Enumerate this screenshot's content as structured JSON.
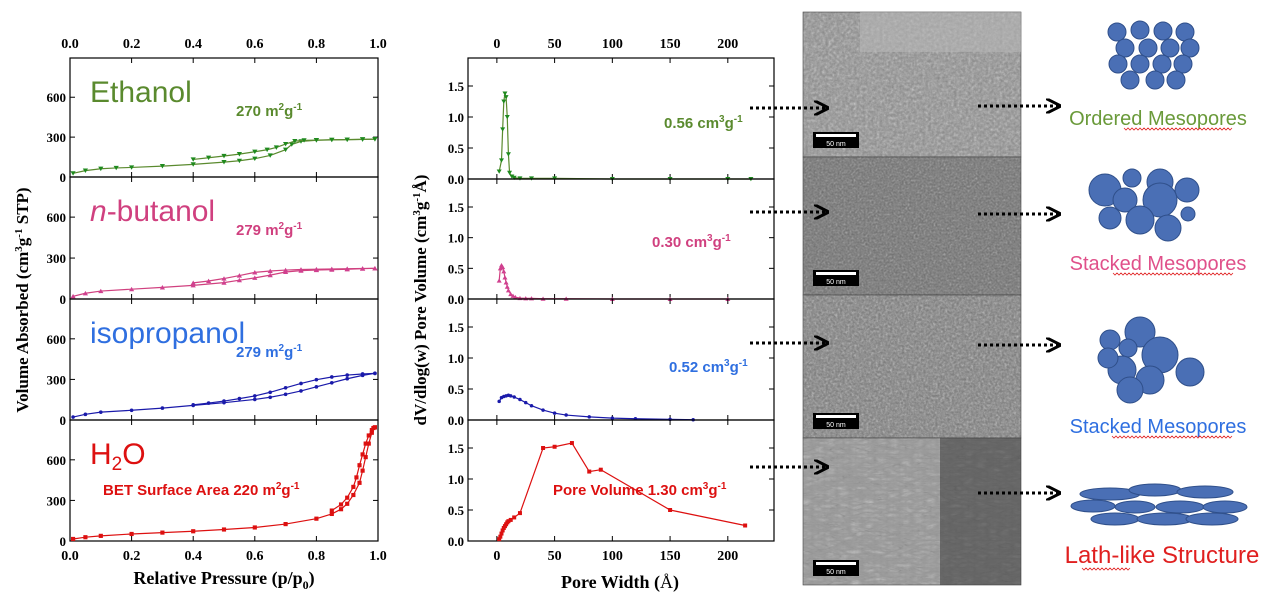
{
  "chart_data": [
    {
      "type": "line",
      "xlabel": "Relative Pressure (p/p0)",
      "xlabel_main": "Relative Pressure (p/p",
      "xlabel_sub": "0",
      "xlabel_tail": ")",
      "ylabel": "Volume Absorbed (cm3g-1 STP)",
      "ylabel_main": "Volume Absorbed (cm",
      "ylabel_sup": "3",
      "ylabel_mid": "g",
      "ylabel_sup2": "-1",
      "ylabel_tail": " STP)",
      "xlim": [
        0.0,
        1.0
      ],
      "x_ticks": [
        "0.0",
        "0.2",
        "0.4",
        "0.6",
        "0.8",
        "1.0"
      ],
      "x_tick_values": [
        0.0,
        0.2,
        0.4,
        0.6,
        0.8,
        1.0
      ],
      "ylim": [
        0,
        850
      ],
      "y_ticks": [
        "0",
        "300",
        "600"
      ],
      "y_tick_values": [
        0,
        300,
        600
      ],
      "panels": [
        {
          "name": "Ethanol",
          "color": "#5a8a2e",
          "marker_color": "#1e8a1e",
          "marker": "triangle-down",
          "annotation": "270 m2g-1",
          "annotation_main": "270 m",
          "annotation_sup": "2",
          "annotation_mid": "g",
          "annotation_sup2": "-1",
          "adsorption": {
            "x": [
              0.01,
              0.05,
              0.1,
              0.15,
              0.2,
              0.3,
              0.4,
              0.5,
              0.55,
              0.6,
              0.65,
              0.7,
              0.72,
              0.75,
              0.8,
              0.85,
              0.9,
              0.95,
              0.99
            ],
            "y": [
              28,
              48,
              62,
              68,
              72,
              82,
              95,
              112,
              122,
              138,
              162,
              205,
              245,
              268,
              276,
              279,
              281,
              283,
              285
            ]
          },
          "desorption": {
            "x": [
              0.99,
              0.95,
              0.9,
              0.85,
              0.8,
              0.76,
              0.73,
              0.7,
              0.67,
              0.64,
              0.6,
              0.55,
              0.5,
              0.45,
              0.4
            ],
            "y": [
              285,
              283,
              281,
              280,
              278,
              276,
              270,
              248,
              222,
              205,
              190,
              172,
              158,
              145,
              132
            ]
          }
        },
        {
          "name": "n-butanol",
          "name_italic": "n",
          "name_rest": "-butanol",
          "color": "#d0407f",
          "marker_color": "#d0408f",
          "marker": "triangle-up",
          "annotation": "279 m2g-1",
          "annotation_main": "279 m",
          "annotation_sup": "2",
          "annotation_mid": "g",
          "annotation_sup2": "-1",
          "adsorption": {
            "x": [
              0.01,
              0.05,
              0.1,
              0.2,
              0.3,
              0.4,
              0.5,
              0.55,
              0.6,
              0.65,
              0.7,
              0.75,
              0.8,
              0.85,
              0.9,
              0.95,
              0.99
            ],
            "y": [
              20,
              42,
              58,
              72,
              85,
              100,
              120,
              138,
              155,
              175,
              198,
              208,
              212,
              215,
              218,
              222,
              225
            ]
          },
          "desorption": {
            "x": [
              0.99,
              0.95,
              0.9,
              0.85,
              0.8,
              0.75,
              0.7,
              0.65,
              0.6,
              0.55,
              0.5,
              0.45,
              0.4
            ],
            "y": [
              225,
              224,
              222,
              220,
              218,
              216,
              212,
              205,
              195,
              172,
              150,
              132,
              118
            ]
          }
        },
        {
          "name": "isopropanol",
          "color": "#1a1aaa",
          "marker_color": "#1a1aaa",
          "marker": "dot",
          "label_color": "#2f6fe0",
          "annotation": "279 m2g-1",
          "annotation_main": "279 m",
          "annotation_sup": "2",
          "annotation_mid": "g",
          "annotation_sup2": "-1",
          "adsorption": {
            "x": [
              0.01,
              0.05,
              0.1,
              0.2,
              0.3,
              0.4,
              0.5,
              0.6,
              0.65,
              0.7,
              0.75,
              0.8,
              0.85,
              0.9,
              0.95,
              0.99
            ],
            "y": [
              22,
              42,
              58,
              72,
              88,
              108,
              128,
              152,
              168,
              190,
              215,
              245,
              275,
              305,
              330,
              345
            ]
          },
          "desorption": {
            "x": [
              0.99,
              0.95,
              0.9,
              0.85,
              0.8,
              0.75,
              0.7,
              0.65,
              0.6,
              0.55,
              0.5,
              0.45,
              0.4
            ],
            "y": [
              345,
              340,
              332,
              318,
              298,
              270,
              238,
              205,
              178,
              158,
              140,
              125,
              112
            ]
          }
        },
        {
          "name": "H2O",
          "name_main": "H",
          "name_sub": "2",
          "name_tail": "O",
          "color": "#dd1010",
          "marker_color": "#dd1010",
          "marker": "square",
          "annotation": "BET Surface Area 220 m2g-1",
          "annotation_main": "BET Surface Area 220 m",
          "annotation_sup": "2",
          "annotation_mid": "g",
          "annotation_sup2": "-1",
          "adsorption": {
            "x": [
              0.01,
              0.05,
              0.1,
              0.2,
              0.3,
              0.4,
              0.5,
              0.6,
              0.7,
              0.8,
              0.85,
              0.88,
              0.9,
              0.92,
              0.94,
              0.95,
              0.96,
              0.97,
              0.98,
              0.99
            ],
            "y": [
              15,
              28,
              38,
              52,
              62,
              72,
              85,
              100,
              125,
              165,
              200,
              235,
              275,
              340,
              430,
              520,
              620,
              720,
              800,
              840
            ]
          },
          "desorption": {
            "x": [
              0.99,
              0.985,
              0.98,
              0.97,
              0.96,
              0.95,
              0.94,
              0.93,
              0.92,
              0.9,
              0.88,
              0.85
            ],
            "y": [
              840,
              835,
              820,
              780,
              720,
              640,
              560,
              470,
              400,
              320,
              270,
              225
            ]
          }
        }
      ]
    },
    {
      "type": "line",
      "xlabel": "Pore Width (Å)",
      "xlabel_main": "Pore Width (",
      "xlabel_unit": "Å",
      "xlabel_tail": ")",
      "ylabel": "dV/dlog(w) Pore Volume (cm3g-1Å)",
      "ylabel_main": "dV/dlog(w) Pore Volume (cm",
      "ylabel_sup": "3",
      "ylabel_mid": "g",
      "ylabel_sup2": "-1",
      "ylabel_tail": "Å)",
      "xlim": [
        -25,
        240
      ],
      "x_ticks": [
        "0",
        "50",
        "100",
        "150",
        "200"
      ],
      "x_tick_values": [
        0,
        50,
        100,
        150,
        200
      ],
      "ylim": [
        0,
        1.5
      ],
      "y_ticks": [
        "0.0",
        "0.5",
        "1.0",
        "1.5"
      ],
      "y_tick_values": [
        0.0,
        0.5,
        1.0,
        1.5
      ],
      "panels": [
        {
          "color": "#5a8a2e",
          "marker_color": "#1e8a1e",
          "marker": "triangle-down",
          "annotation": "0.56 cm3g-1",
          "annotation_main": "0.56 cm",
          "annotation_sup": "3",
          "annotation_mid": "g",
          "annotation_sup2": "-1",
          "x": [
            2,
            4,
            5,
            6,
            7,
            8,
            9,
            10,
            11,
            13,
            15,
            20,
            30,
            50,
            100,
            150,
            200,
            220
          ],
          "y": [
            0.12,
            0.3,
            0.8,
            1.25,
            1.38,
            1.32,
            1.0,
            0.4,
            0.1,
            0.04,
            0.02,
            0.01,
            0.01,
            0.01,
            0.0,
            0.0,
            0.0,
            0.0
          ]
        },
        {
          "color": "#d0407f",
          "marker_color": "#d0408f",
          "marker": "triangle-up",
          "annotation": "0.30 cm3g-1",
          "annotation_main": "0.30 cm",
          "annotation_sup": "3",
          "annotation_mid": "g",
          "annotation_sup2": "-1",
          "x": [
            2,
            3,
            4,
            5,
            6,
            7,
            8,
            9,
            10,
            12,
            14,
            16,
            20,
            25,
            30,
            40,
            60,
            100,
            150,
            200
          ],
          "y": [
            0.3,
            0.5,
            0.55,
            0.52,
            0.45,
            0.35,
            0.27,
            0.2,
            0.14,
            0.08,
            0.05,
            0.03,
            0.015,
            0.01,
            0.01,
            0.005,
            0.005,
            0.0,
            0.0,
            0.0
          ]
        },
        {
          "color": "#1a1aaa",
          "marker_color": "#1a1aaa",
          "marker": "dot",
          "annotation": "0.52 cm3g-1",
          "annotation_main": "0.52 cm",
          "annotation_sup": "3",
          "annotation_mid": "g",
          "annotation_sup2": "-1",
          "x": [
            2,
            4,
            6,
            8,
            10,
            12,
            15,
            20,
            25,
            30,
            40,
            50,
            60,
            80,
            100,
            120,
            150,
            170
          ],
          "y": [
            0.3,
            0.36,
            0.38,
            0.39,
            0.4,
            0.39,
            0.37,
            0.33,
            0.28,
            0.23,
            0.16,
            0.11,
            0.08,
            0.05,
            0.03,
            0.02,
            0.01,
            0.005
          ]
        },
        {
          "color": "#dd1010",
          "marker_color": "#dd1010",
          "marker": "square",
          "annotation": "Pore Volume 1.30 cm3g-1",
          "annotation_main": "Pore Volume 1.30 cm",
          "annotation_sup": "3",
          "annotation_mid": "g",
          "annotation_sup2": "-1",
          "x": [
            2,
            3,
            4,
            5,
            6,
            7,
            8,
            9,
            10,
            12,
            15,
            20,
            40,
            50,
            65,
            80,
            90,
            150,
            215
          ],
          "y": [
            0.03,
            0.07,
            0.12,
            0.17,
            0.21,
            0.24,
            0.27,
            0.3,
            0.32,
            0.34,
            0.38,
            0.45,
            1.5,
            1.52,
            1.58,
            1.12,
            1.15,
            0.5,
            0.25
          ]
        }
      ]
    }
  ],
  "tem": {
    "scale_bars": [
      "50 nm",
      "50 nm",
      "50 nm",
      "50 nm"
    ],
    "structures": [
      {
        "label": "Ordered Mesopores",
        "color": "#6a9a3a"
      },
      {
        "label": "Stacked Mesopores",
        "color": "#e0508a"
      },
      {
        "label": "Stacked Mesopores",
        "color": "#2f6fe0"
      },
      {
        "label": "Lath-like Structure",
        "color": "#e02020"
      }
    ],
    "shape_fill": "#4a6fb5",
    "shape_stroke": "#2f4f8a"
  }
}
